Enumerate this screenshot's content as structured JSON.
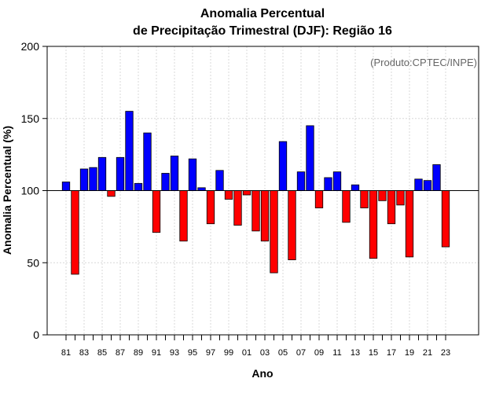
{
  "chart_data": {
    "type": "bar",
    "title_line1": "Anomalia Percentual",
    "title_line2": "de Precipitação Trimestral (DJF): Região 16",
    "xlabel": "Ano",
    "ylabel": "Anomalia Percentual (%)",
    "credit": "(Produto:CPTEC/INPE)",
    "ylim": [
      0,
      200
    ],
    "yticks": [
      0,
      50,
      100,
      150,
      200
    ],
    "baseline": 100,
    "grid": true,
    "colors": {
      "above": "#0000ff",
      "below": "#ff0000",
      "border": "#000000"
    },
    "categories": [
      "81",
      "82",
      "83",
      "84",
      "85",
      "86",
      "87",
      "88",
      "89",
      "90",
      "91",
      "92",
      "93",
      "94",
      "95",
      "96",
      "97",
      "98",
      "99",
      "00",
      "01",
      "02",
      "03",
      "04",
      "05",
      "06",
      "07",
      "08",
      "09",
      "10",
      "11",
      "12",
      "13",
      "14",
      "15",
      "16",
      "17",
      "18",
      "19",
      "20",
      "21",
      "22",
      "23"
    ],
    "xtick_labels": [
      "81",
      "83",
      "85",
      "87",
      "89",
      "91",
      "93",
      "95",
      "97",
      "99",
      "01",
      "03",
      "05",
      "07",
      "09",
      "11",
      "13",
      "15",
      "17",
      "19",
      "21",
      "23"
    ],
    "values": [
      106,
      42,
      115,
      116,
      123,
      96,
      123,
      155,
      105,
      140,
      71,
      112,
      124,
      65,
      122,
      102,
      77,
      114,
      94,
      76,
      97,
      72,
      65,
      43,
      134,
      52,
      113,
      145,
      88,
      109,
      113,
      78,
      104,
      88,
      53,
      93,
      77,
      90,
      54,
      108,
      107,
      118,
      61
    ]
  }
}
